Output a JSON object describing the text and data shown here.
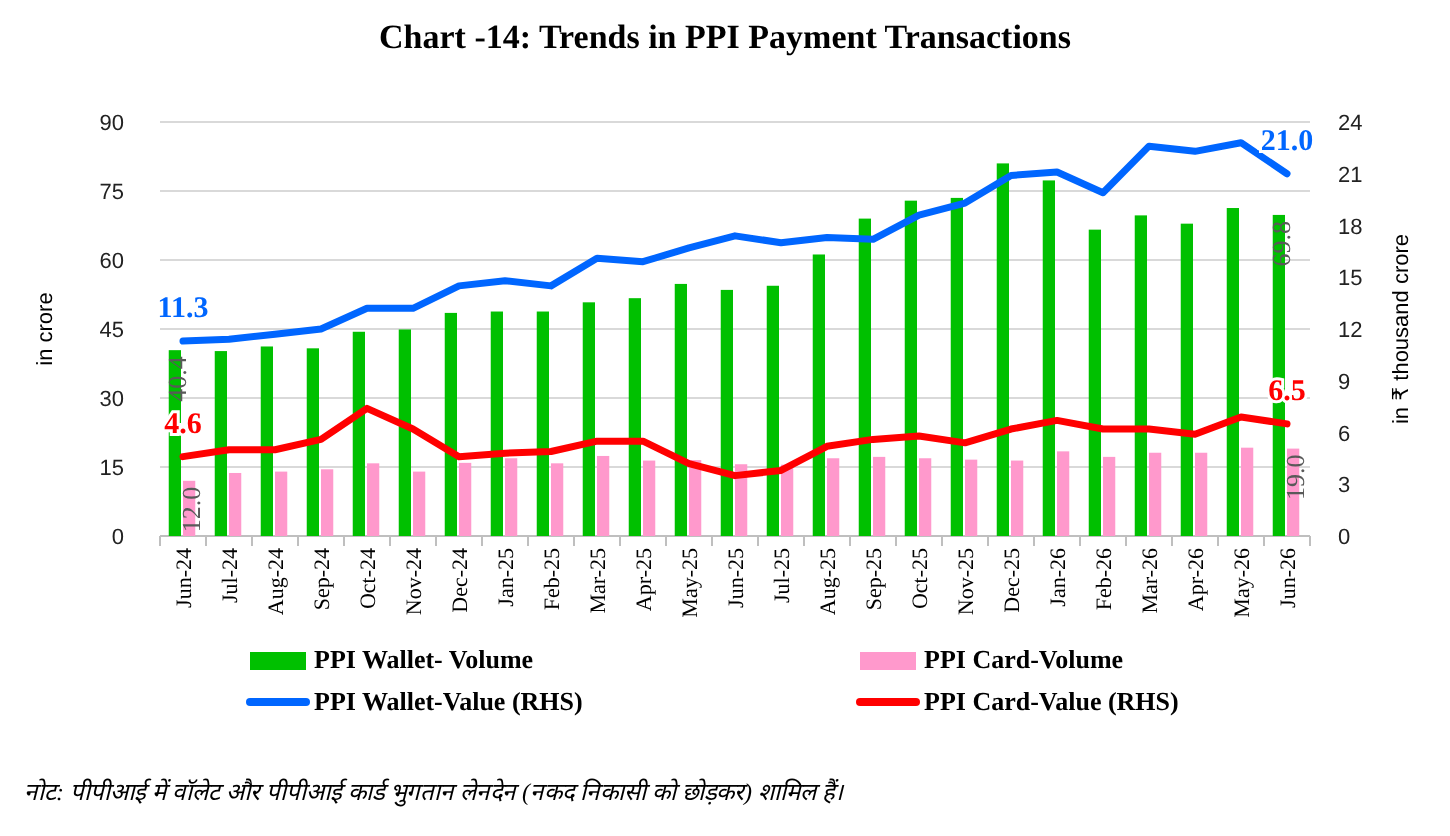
{
  "chart_data": {
    "type": "bar",
    "title": "Chart -14: Trends in PPI Payment Transactions",
    "categories": [
      "Jun-24",
      "Jul-24",
      "Aug-24",
      "Sep-24",
      "Oct-24",
      "Nov-24",
      "Dec-24",
      "Jan-25",
      "Feb-25",
      "Mar-25",
      "Apr-25",
      "May-25",
      "Jun-25",
      "Jul-25",
      "Aug-25",
      "Sep-25",
      "Oct-25",
      "Nov-25",
      "Dec-25",
      "Jan-26",
      "Feb-26",
      "Mar-26",
      "Apr-26",
      "May-26",
      "Jun-26"
    ],
    "series": [
      {
        "name": "PPI Wallet- Volume",
        "color": "#00c000",
        "values": [
          40.4,
          40.2,
          41.2,
          40.8,
          44.4,
          44.9,
          48.5,
          48.8,
          48.8,
          50.8,
          51.7,
          54.8,
          53.5,
          54.4,
          61.2,
          69.0,
          72.9,
          73.5,
          81.0,
          77.3,
          66.6,
          69.7,
          67.9,
          71.3,
          69.8
        ],
        "value_labels": [
          "40.4",
          null,
          null,
          null,
          null,
          null,
          null,
          null,
          null,
          null,
          null,
          null,
          null,
          null,
          null,
          null,
          null,
          null,
          null,
          null,
          null,
          null,
          null,
          null,
          "69.8"
        ]
      },
      {
        "name": "PPI Card-Volume",
        "color": "#ff99cc",
        "values": [
          12.0,
          13.7,
          14.0,
          14.5,
          15.8,
          14.0,
          15.9,
          16.9,
          15.8,
          17.4,
          16.4,
          16.5,
          15.6,
          15.5,
          16.9,
          17.2,
          16.9,
          16.6,
          16.4,
          18.4,
          17.2,
          18.1,
          18.1,
          19.2,
          19.0
        ],
        "value_labels": [
          "12.0",
          null,
          null,
          null,
          null,
          null,
          null,
          null,
          null,
          null,
          null,
          null,
          null,
          null,
          null,
          null,
          null,
          null,
          null,
          null,
          null,
          null,
          null,
          null,
          "19.0"
        ]
      },
      {
        "name": "PPI Wallet-Value (RHS)",
        "type": "line",
        "axis": "y2",
        "color": "#0066ff",
        "values": [
          11.3,
          11.4,
          11.7,
          12.0,
          13.2,
          13.2,
          14.5,
          14.8,
          14.5,
          16.1,
          15.9,
          16.7,
          17.4,
          17.0,
          17.3,
          17.2,
          18.6,
          19.3,
          20.9,
          21.1,
          19.9,
          22.6,
          22.3,
          22.8,
          21.0
        ],
        "value_labels": [
          "11.3",
          null,
          null,
          null,
          null,
          null,
          null,
          null,
          null,
          null,
          null,
          null,
          null,
          null,
          null,
          null,
          null,
          null,
          null,
          null,
          null,
          null,
          null,
          null,
          "21.0"
        ]
      },
      {
        "name": "PPI Card-Value (RHS)",
        "type": "line",
        "axis": "y2",
        "color": "#ff0000",
        "values": [
          4.6,
          5.0,
          5.0,
          5.6,
          7.4,
          6.2,
          4.6,
          4.8,
          4.9,
          5.5,
          5.5,
          4.2,
          3.5,
          3.8,
          5.2,
          5.6,
          5.8,
          5.4,
          6.2,
          6.7,
          6.2,
          6.2,
          5.9,
          6.9,
          6.5
        ],
        "value_labels": [
          "4.6",
          null,
          null,
          null,
          null,
          null,
          null,
          null,
          null,
          null,
          null,
          null,
          null,
          null,
          null,
          null,
          null,
          null,
          null,
          null,
          null,
          null,
          null,
          null,
          "6.5"
        ]
      }
    ],
    "ylabel": "in crore",
    "y2label": "in ₹ thousand crore",
    "ylim": [
      0,
      90
    ],
    "yticks": [
      0,
      15,
      30,
      45,
      60,
      75,
      90
    ],
    "y2lim": [
      0,
      24
    ],
    "y2ticks": [
      0,
      3,
      6,
      9,
      12,
      15,
      18,
      21,
      24
    ],
    "grid": "y",
    "legend": "bottom",
    "annotations": [
      "नोट: पीपीआई में वॉलेट और पीपीआई कार्ड भुगतान लेनदेन (नकद निकासी को छोड़कर) शामिल हैं।"
    ]
  }
}
